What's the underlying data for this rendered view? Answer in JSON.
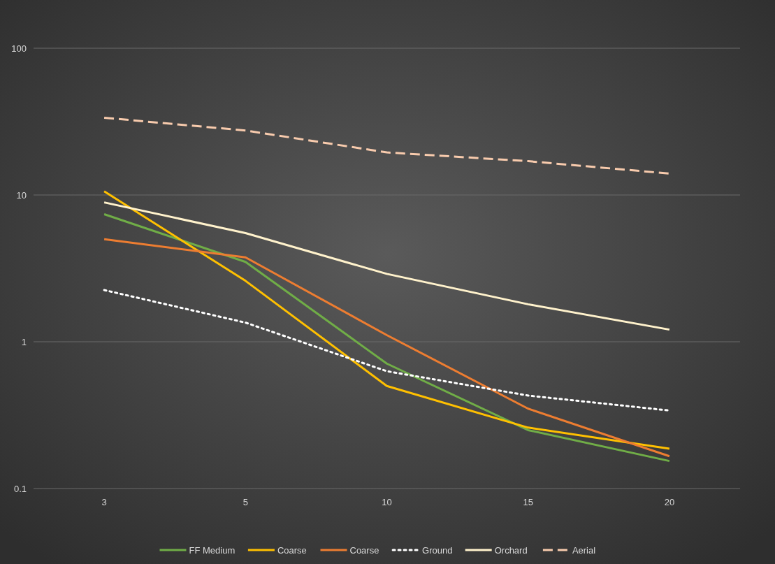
{
  "chart_data": {
    "type": "line",
    "categories": [
      "3",
      "5",
      "10",
      "15",
      "20"
    ],
    "log": true,
    "ylim": [
      0.1,
      100
    ],
    "yticks": [
      {
        "value": 0.1,
        "label": "0.1"
      },
      1,
      10,
      100
    ],
    "grid": "y",
    "legend": "bottom",
    "series": [
      {
        "name": "FF Medium",
        "color": "#70ad47",
        "values": [
          7.4,
          3.5,
          0.71,
          0.25,
          0.154
        ],
        "line_style": "solid"
      },
      {
        "name": "Coarse",
        "color": "#ffc000",
        "values": [
          10.6,
          2.6,
          0.5,
          0.26,
          0.187
        ],
        "line_style": "solid"
      },
      {
        "name": "Coarse",
        "color": "#ed7d31",
        "values": [
          5.0,
          3.76,
          1.11,
          0.35,
          0.166
        ],
        "line_style": "solid"
      },
      {
        "name": "Ground",
        "color": "#ffffff",
        "values": [
          2.25,
          1.35,
          0.63,
          0.43,
          0.34
        ],
        "line_style": "dotted"
      },
      {
        "name": "Orchard",
        "color": "#fff2cc",
        "values": [
          8.9,
          5.5,
          2.9,
          1.8,
          1.21
        ],
        "line_style": "solid"
      },
      {
        "name": "Aerial",
        "color": "#f8cbad",
        "values": [
          33.6,
          27.5,
          19.5,
          17,
          14
        ],
        "line_style": "dashed"
      }
    ]
  }
}
